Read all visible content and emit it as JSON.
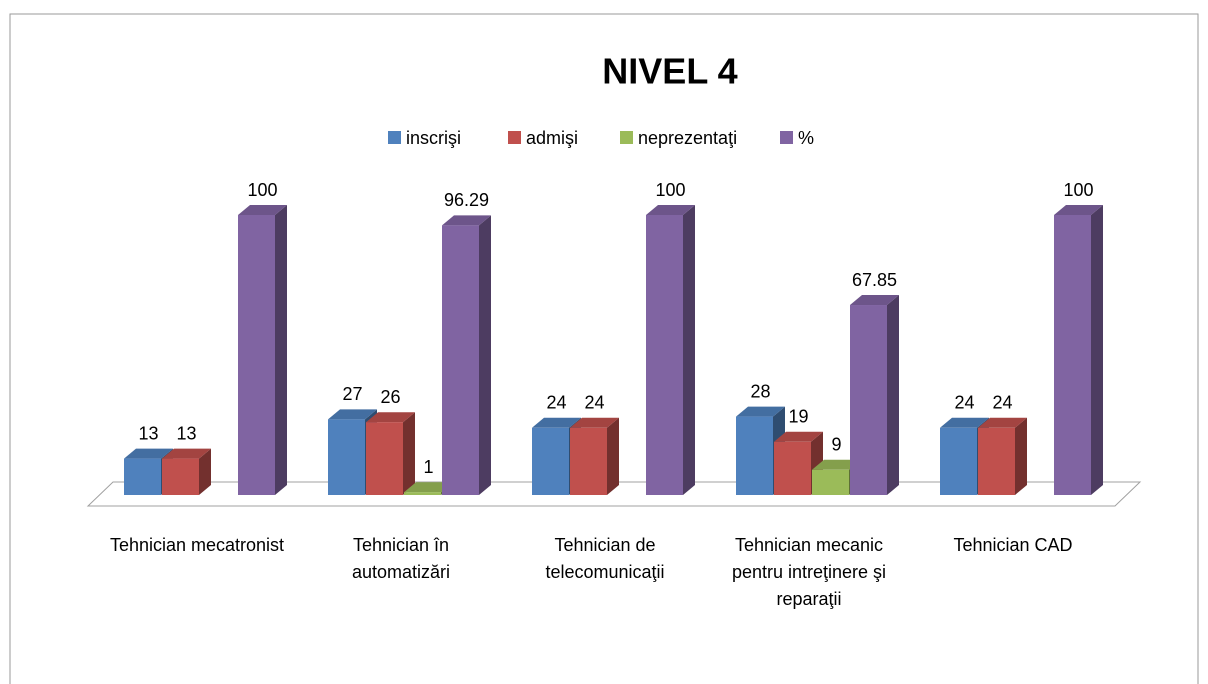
{
  "chart_data": {
    "type": "bar3d",
    "title": "NIVEL 4",
    "categories": [
      "Tehnician mecatronist",
      "Tehnician în automatizări",
      "Tehnician de telecomunicaţii",
      "Tehnician mecanic pentru intreţinere şi reparaţii",
      "Tehnician CAD"
    ],
    "series": [
      {
        "name": "inscrişi",
        "color": "#4f81bd",
        "values": [
          13,
          27,
          24,
          28,
          24
        ]
      },
      {
        "name": "admişi",
        "color": "#c0504d",
        "values": [
          13,
          26,
          24,
          19,
          24
        ]
      },
      {
        "name": "neprezentaţi",
        "color": "#9bbb59",
        "values": [
          null,
          1,
          null,
          9,
          null
        ]
      },
      {
        "name": "%",
        "color": "#8064a2",
        "values": [
          100,
          96.29,
          100,
          67.85,
          100
        ]
      }
    ],
    "legend": "top"
  }
}
